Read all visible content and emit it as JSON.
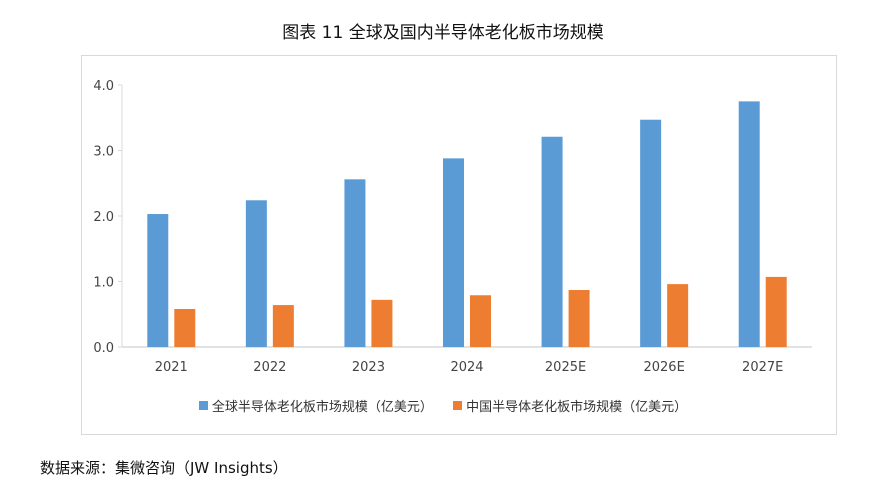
{
  "title": "图表 11  全球及国内半导体老化板市场规模",
  "source": "数据来源：集微咨询（JW Insights）",
  "chart_data": {
    "type": "bar",
    "title": "图表 11  全球及国内半导体老化板市场规模",
    "categories": [
      "2021",
      "2022",
      "2023",
      "2024",
      "2025E",
      "2026E",
      "2027E"
    ],
    "series": [
      {
        "name": "全球半导体老化板市场规模（亿美元）",
        "color": "#5b9bd5",
        "values": [
          2.03,
          2.24,
          2.56,
          2.88,
          3.21,
          3.47,
          3.75
        ]
      },
      {
        "name": "中国半导体老化板市场规模（亿美元）",
        "color": "#ed7d31",
        "values": [
          0.58,
          0.64,
          0.72,
          0.79,
          0.87,
          0.96,
          1.07
        ]
      }
    ],
    "yticks": [
      "0.0",
      "1.0",
      "2.0",
      "3.0",
      "4.0"
    ],
    "ylim": [
      0,
      4
    ],
    "grid": false,
    "legend": "bottom"
  }
}
